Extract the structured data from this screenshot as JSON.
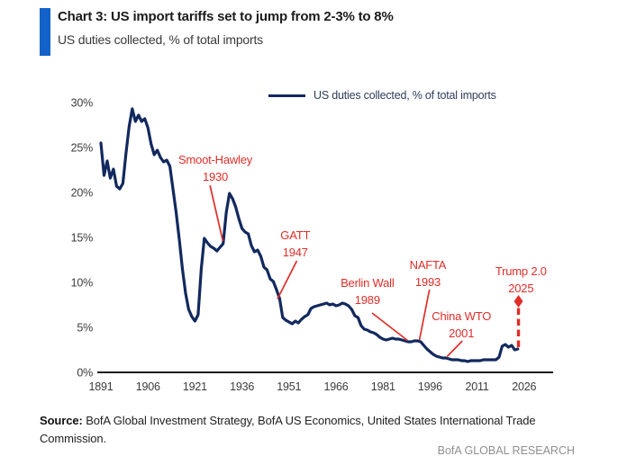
{
  "header": {
    "title": "Chart 3: US import tariffs set to jump from 2-3% to 8%",
    "subtitle": "US duties collected, % of total imports",
    "accent_bar_color": "#1262c9"
  },
  "legend": {
    "label": "US duties collected, % of total imports"
  },
  "footer": {
    "source_label": "Source:",
    "source_text": " BofA Global Investment Strategy, BofA US Economics, United States International Trade Commission.",
    "watermark": "BofA GLOBAL RESEARCH"
  },
  "colors": {
    "line": "#12295e",
    "annotation": "#e02d28",
    "axis": "#1a1a1a",
    "tick_text": "#3c3c3c"
  },
  "chart_data": {
    "type": "line",
    "title": "Chart 3: US import tariffs set to jump from 2-3% to 8%",
    "subtitle": "US duties collected, % of total imports",
    "xlabel": "",
    "ylabel": "US duties collected, % of total imports",
    "xlim": [
      1889,
      2035
    ],
    "ylim": [
      0,
      30
    ],
    "grid": false,
    "legend_position": "top",
    "x_ticks": [
      1891,
      1906,
      1921,
      1936,
      1951,
      1966,
      1981,
      1996,
      2011,
      2026
    ],
    "y_ticks": [
      {
        "v": 0,
        "label": "0%"
      },
      {
        "v": 5,
        "label": "5%"
      },
      {
        "v": 10,
        "label": "10%"
      },
      {
        "v": 15,
        "label": "15%"
      },
      {
        "v": 20,
        "label": "20%"
      },
      {
        "v": 25,
        "label": "25%"
      },
      {
        "v": 30,
        "label": "30%"
      }
    ],
    "series": [
      {
        "name": "US duties collected, % of total imports",
        "points": [
          [
            1891,
            25.5
          ],
          [
            1892,
            21.9
          ],
          [
            1893,
            23.5
          ],
          [
            1894,
            21.6
          ],
          [
            1895,
            22.6
          ],
          [
            1896,
            20.7
          ],
          [
            1897,
            20.4
          ],
          [
            1898,
            21.0
          ],
          [
            1899,
            24.3
          ],
          [
            1900,
            27.3
          ],
          [
            1901,
            29.3
          ],
          [
            1902,
            27.9
          ],
          [
            1903,
            28.6
          ],
          [
            1904,
            27.9
          ],
          [
            1905,
            28.2
          ],
          [
            1906,
            27.2
          ],
          [
            1907,
            25.4
          ],
          [
            1908,
            24.2
          ],
          [
            1909,
            24.7
          ],
          [
            1910,
            23.9
          ],
          [
            1911,
            23.4
          ],
          [
            1912,
            23.6
          ],
          [
            1913,
            22.9
          ],
          [
            1914,
            20.4
          ],
          [
            1915,
            17.8
          ],
          [
            1916,
            14.8
          ],
          [
            1917,
            11.5
          ],
          [
            1918,
            8.8
          ],
          [
            1919,
            7.0
          ],
          [
            1920,
            6.2
          ],
          [
            1921,
            5.7
          ],
          [
            1922,
            6.4
          ],
          [
            1923,
            11.5
          ],
          [
            1924,
            14.9
          ],
          [
            1925,
            14.4
          ],
          [
            1926,
            14.0
          ],
          [
            1927,
            13.8
          ],
          [
            1928,
            13.5
          ],
          [
            1929,
            13.9
          ],
          [
            1930,
            14.3
          ],
          [
            1931,
            17.8
          ],
          [
            1932,
            19.9
          ],
          [
            1933,
            19.3
          ],
          [
            1934,
            18.4
          ],
          [
            1935,
            17.1
          ],
          [
            1936,
            16.0
          ],
          [
            1937,
            15.6
          ],
          [
            1938,
            15.4
          ],
          [
            1939,
            14.1
          ],
          [
            1940,
            13.4
          ],
          [
            1941,
            13.6
          ],
          [
            1942,
            12.9
          ],
          [
            1943,
            11.7
          ],
          [
            1944,
            11.4
          ],
          [
            1945,
            10.4
          ],
          [
            1946,
            10.1
          ],
          [
            1947,
            9.2
          ],
          [
            1948,
            8.2
          ],
          [
            1949,
            6.1
          ],
          [
            1950,
            5.8
          ],
          [
            1951,
            5.6
          ],
          [
            1952,
            5.4
          ],
          [
            1953,
            5.7
          ],
          [
            1954,
            5.5
          ],
          [
            1955,
            5.9
          ],
          [
            1956,
            6.2
          ],
          [
            1957,
            6.4
          ],
          [
            1958,
            7.1
          ],
          [
            1959,
            7.3
          ],
          [
            1960,
            7.4
          ],
          [
            1961,
            7.5
          ],
          [
            1962,
            7.6
          ],
          [
            1963,
            7.7
          ],
          [
            1964,
            7.5
          ],
          [
            1965,
            7.6
          ],
          [
            1966,
            7.4
          ],
          [
            1967,
            7.5
          ],
          [
            1968,
            7.7
          ],
          [
            1969,
            7.6
          ],
          [
            1970,
            7.4
          ],
          [
            1971,
            7.0
          ],
          [
            1972,
            6.3
          ],
          [
            1973,
            6.1
          ],
          [
            1974,
            5.2
          ],
          [
            1975,
            4.8
          ],
          [
            1976,
            4.7
          ],
          [
            1977,
            4.5
          ],
          [
            1978,
            4.4
          ],
          [
            1979,
            4.2
          ],
          [
            1980,
            3.9
          ],
          [
            1981,
            3.7
          ],
          [
            1982,
            3.6
          ],
          [
            1983,
            3.7
          ],
          [
            1984,
            3.8
          ],
          [
            1985,
            3.7
          ],
          [
            1986,
            3.7
          ],
          [
            1987,
            3.6
          ],
          [
            1988,
            3.5
          ],
          [
            1989,
            3.4
          ],
          [
            1990,
            3.4
          ],
          [
            1991,
            3.5
          ],
          [
            1992,
            3.5
          ],
          [
            1993,
            3.4
          ],
          [
            1994,
            3.0
          ],
          [
            1995,
            2.6
          ],
          [
            1996,
            2.3
          ],
          [
            1997,
            2.0
          ],
          [
            1998,
            1.8
          ],
          [
            1999,
            1.7
          ],
          [
            2000,
            1.6
          ],
          [
            2001,
            1.6
          ],
          [
            2002,
            1.5
          ],
          [
            2003,
            1.4
          ],
          [
            2004,
            1.4
          ],
          [
            2005,
            1.4
          ],
          [
            2006,
            1.3
          ],
          [
            2007,
            1.3
          ],
          [
            2008,
            1.2
          ],
          [
            2009,
            1.3
          ],
          [
            2010,
            1.3
          ],
          [
            2011,
            1.3
          ],
          [
            2012,
            1.3
          ],
          [
            2013,
            1.4
          ],
          [
            2014,
            1.4
          ],
          [
            2015,
            1.4
          ],
          [
            2016,
            1.4
          ],
          [
            2017,
            1.4
          ],
          [
            2018,
            1.7
          ],
          [
            2019,
            2.9
          ],
          [
            2020,
            3.1
          ],
          [
            2021,
            2.8
          ],
          [
            2022,
            3.0
          ],
          [
            2023,
            2.5
          ],
          [
            2024,
            2.6
          ]
        ]
      }
    ],
    "projection": {
      "label": "Trump 2.0 2025",
      "year": 2024.2,
      "from_pct": 2.8,
      "to_pct": 7.2,
      "marker_pct": 7.9,
      "target_pct": 8,
      "style": "dashed-arrow"
    },
    "annotations": [
      {
        "id": "smoot-hawley-1930",
        "lines": [
          "Smoot-Hawley",
          "1930"
        ],
        "label_year": 1927.5,
        "label_pct": 22.8,
        "pointer": {
          "from": [
            1925.8,
            20.8
          ],
          "to": [
            1929.9,
            14.6
          ]
        }
      },
      {
        "id": "gatt-1947",
        "lines": [
          "GATT",
          "1947"
        ],
        "label_year": 1953.0,
        "label_pct": 14.4,
        "pointer": {
          "from": [
            1953.5,
            12.4
          ],
          "to": [
            1947.3,
            8.15
          ]
        }
      },
      {
        "id": "berlin-wall-1989",
        "lines": [
          "Berlin Wall",
          "1989"
        ],
        "label_year": 1976.0,
        "label_pct": 9.1,
        "pointer": {
          "from": [
            1977.5,
            6.6
          ],
          "to": [
            1988.8,
            3.55
          ]
        }
      },
      {
        "id": "nafta-1993",
        "lines": [
          "NAFTA",
          "1993"
        ],
        "label_year": 1995.3,
        "label_pct": 11.1,
        "pointer": {
          "from": [
            1995.8,
            9.2
          ],
          "to": [
            1992.6,
            3.6
          ]
        }
      },
      {
        "id": "china-wto-2001",
        "lines": [
          "China WTO",
          "2001"
        ],
        "label_year": 2006.0,
        "label_pct": 5.4,
        "pointer": {
          "from": [
            2006.3,
            3.5
          ],
          "to": [
            2001.4,
            1.75
          ]
        }
      },
      {
        "id": "trump-2-0-2025",
        "lines": [
          "Trump 2.0",
          "2025"
        ],
        "label_year": 2025.0,
        "label_pct": 10.4,
        "pointer": null
      }
    ]
  }
}
